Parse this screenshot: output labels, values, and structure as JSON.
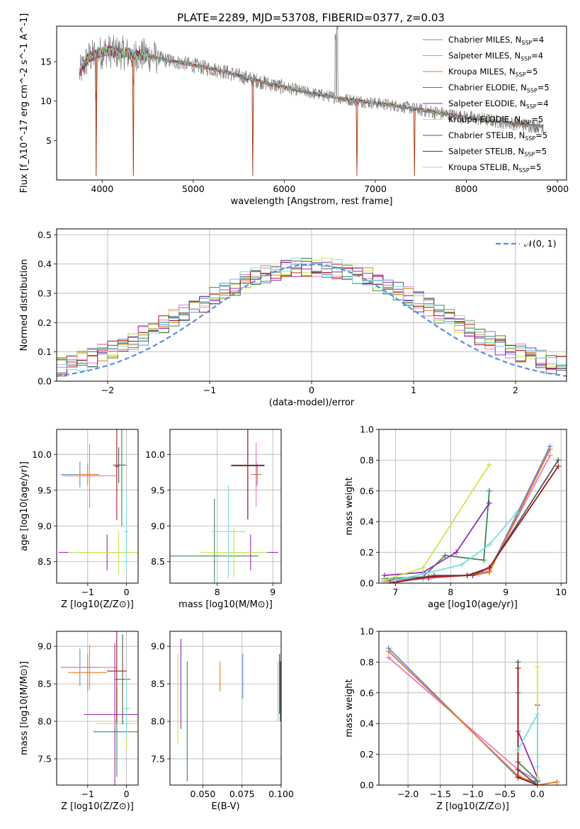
{
  "figure": {
    "title": "PLATE=2289, MJD=53708, FIBERID=0377, z=0.03"
  },
  "colors": {
    "models": [
      "#5b8ede",
      "#e879c5",
      "#e07a1e",
      "#3a8a55",
      "#9a2bbb",
      "#c9e84a",
      "#555555",
      "#a01818",
      "#7fdbe0"
    ],
    "data": "#7a7a7a",
    "gaussian": "#5b8ede"
  },
  "chart_data": [
    {
      "id": "spectrum",
      "type": "line",
      "title": "PLATE=2289, MJD=53708, FIBERID=0377, z=0.03",
      "xlabel": "wavelength [Angstrom, rest frame]",
      "ylabel": "Flux [f_λ10^-17 erg cm^-2 s^-1 A^-1]",
      "xlim": [
        3500,
        9100
      ],
      "ylim": [
        0,
        19.5
      ],
      "xticks": [
        4000,
        5000,
        6000,
        7000,
        8000,
        9000
      ],
      "yticks": [
        5,
        10,
        15
      ],
      "legend_position": "top-right",
      "legend": [
        "Chabrier MILES, N_SSP=4",
        "Salpeter MILES, N_SSP=4",
        "Kroupa MILES, N_SSP=5",
        "Chabrier ELODIE, N_SSP=5",
        "Salpeter ELODIE, N_SSP=4",
        "Kroupa ELODIE, N_SSP=5",
        "Chabrier STELIB, N_SSP=5",
        "Salpeter STELIB, N_SSP=5",
        "Kroupa STELIB, N_SSP=5"
      ],
      "continuum_x": [
        3750,
        3850,
        3950,
        4050,
        4150,
        4300,
        4500,
        4700,
        4900,
        5100,
        5300,
        5500,
        5700,
        5900,
        6100,
        6300,
        6500,
        6700,
        6900,
        7100,
        7300,
        7500,
        7700,
        7900,
        8100,
        8300,
        8500,
        8700,
        8850
      ],
      "continuum_y": [
        13.5,
        15.5,
        16.0,
        16.4,
        16.2,
        16.0,
        15.8,
        15.2,
        14.8,
        14.3,
        13.9,
        13.2,
        12.6,
        12.0,
        11.5,
        11.0,
        10.6,
        10.2,
        9.9,
        9.6,
        9.3,
        8.9,
        8.5,
        8.1,
        7.8,
        7.5,
        7.2,
        6.9,
        6.8
      ],
      "absorption_lines": [
        3934,
        4340,
        5656,
        6800,
        7430
      ],
      "emission_lines": [
        6563,
        6583
      ]
    },
    {
      "id": "residuals",
      "type": "line",
      "xlabel": "(data-model)/error",
      "ylabel": "Normed distribution",
      "xlim": [
        -2.5,
        2.5
      ],
      "ylim": [
        0,
        0.52
      ],
      "xticks": [
        -2,
        -1,
        0,
        1,
        2
      ],
      "yticks": [
        0.0,
        0.1,
        0.2,
        0.3,
        0.4,
        0.5
      ],
      "legend_position": "top-right",
      "legend": [
        "𝒩(0, 1)"
      ],
      "bin_width": 0.1,
      "bin_start": -2.5,
      "gaussian": {
        "mean": 0,
        "sigma": 1
      }
    },
    {
      "id": "age-vs-Z",
      "type": "scatter",
      "xlabel": "Z [log10(Z/Z⊙)]",
      "ylabel": "age  [log10(age/yr)]",
      "xlim": [
        -1.8,
        0.3
      ],
      "ylim": [
        8.2,
        10.35
      ],
      "xticks": [
        -1,
        0
      ],
      "yticks": [
        8.5,
        9.0,
        9.5,
        10.0
      ],
      "points": [
        {
          "x": -1.2,
          "y": 9.72,
          "xerr": 0.5,
          "yerr": 0.18
        },
        {
          "x": -0.95,
          "y": 9.7,
          "xerr": 0.7,
          "yerr": 0.45
        },
        {
          "x": -1.0,
          "y": 9.72,
          "xerr": 0.3,
          "yerr": 0.15
        },
        {
          "x": -0.12,
          "y": 9.85,
          "xerr": 0.12,
          "yerr": 0.85
        },
        {
          "x": -0.5,
          "y": 8.63,
          "xerr": 1.25,
          "yerr": 0.25
        },
        {
          "x": -0.2,
          "y": 8.63,
          "xerr": 1.3,
          "yerr": 0.3
        },
        {
          "x": -0.2,
          "y": 9.85,
          "xerr": 0.15,
          "yerr": 0.25
        },
        {
          "x": -0.25,
          "y": 9.83,
          "xerr": 0.05,
          "yerr": 0.75
        },
        {
          "x": 0.0,
          "y": 8.92,
          "xerr": 0.05,
          "yerr": 0.55
        }
      ]
    },
    {
      "id": "age-vs-mass",
      "type": "scatter",
      "xlabel": "mass [log10(M/M⊙)]",
      "ylabel": "",
      "xlim": [
        7.15,
        9.15
      ],
      "ylim": [
        8.2,
        10.35
      ],
      "xticks": [
        8,
        9
      ],
      "yticks": [
        8.5,
        9.0,
        9.5,
        10.0
      ],
      "points": [
        {
          "x": 8.7,
          "y": 9.72,
          "xerr": 0.05,
          "yerr": 0.18
        },
        {
          "x": 8.7,
          "y": 9.72,
          "xerr": 0.1,
          "yerr": 0.45
        },
        {
          "x": 8.72,
          "y": 9.72,
          "xerr": 0.08,
          "yerr": 0.15
        },
        {
          "x": 7.95,
          "y": 8.58,
          "xerr": 0.8,
          "yerr": 0.8
        },
        {
          "x": 8.6,
          "y": 8.63,
          "xerr": 0.5,
          "yerr": 0.25
        },
        {
          "x": 8.3,
          "y": 8.63,
          "xerr": 0.6,
          "yerr": 0.35
        },
        {
          "x": 8.55,
          "y": 9.85,
          "xerr": 0.3,
          "yerr": 0.75
        },
        {
          "x": 8.55,
          "y": 9.84,
          "xerr": 0.3,
          "yerr": 0.75
        },
        {
          "x": 8.2,
          "y": 8.92,
          "xerr": 0.3,
          "yerr": 0.65
        }
      ]
    },
    {
      "id": "massweight-vs-age",
      "type": "line",
      "xlabel": "age  [log10(age/yr)]",
      "ylabel": "mass weight",
      "xlim": [
        6.7,
        10.1
      ],
      "ylim": [
        0,
        1.0
      ],
      "xticks": [
        7,
        8,
        9,
        10
      ],
      "yticks": [
        0.0,
        0.2,
        0.4,
        0.6,
        0.8,
        1.0
      ],
      "series": [
        {
          "x": [
            6.8,
            7.5,
            8.3,
            8.7,
            9.8
          ],
          "y": [
            0.02,
            0.03,
            0.05,
            0.08,
            0.89
          ]
        },
        {
          "x": [
            6.8,
            7.6,
            8.5,
            8.7,
            9.8
          ],
          "y": [
            0.01,
            0.03,
            0.06,
            0.08,
            0.83
          ]
        },
        {
          "x": [
            6.9,
            7.6,
            8.4,
            8.7,
            9.8
          ],
          "y": [
            0.0,
            0.04,
            0.05,
            0.07,
            0.87
          ]
        },
        {
          "x": [
            6.8,
            7.5,
            7.9,
            8.6,
            8.7
          ],
          "y": [
            0.03,
            0.04,
            0.18,
            0.15,
            0.6
          ]
        },
        {
          "x": [
            6.8,
            7.5,
            8.1,
            8.7
          ],
          "y": [
            0.05,
            0.07,
            0.2,
            0.52
          ]
        },
        {
          "x": [
            6.8,
            7.5,
            8.7
          ],
          "y": [
            0.02,
            0.1,
            0.77
          ]
        },
        {
          "x": [
            6.9,
            7.7,
            8.4,
            8.7,
            9.95
          ],
          "y": [
            0.0,
            0.05,
            0.05,
            0.1,
            0.8
          ]
        },
        {
          "x": [
            6.9,
            7.6,
            8.3,
            8.7,
            9.95
          ],
          "y": [
            0.0,
            0.04,
            0.05,
            0.1,
            0.76
          ]
        },
        {
          "x": [
            7.0,
            7.5,
            8.2,
            8.7,
            9.2
          ],
          "y": [
            0.02,
            0.06,
            0.12,
            0.25,
            0.46
          ]
        }
      ]
    },
    {
      "id": "mass-vs-Z",
      "type": "scatter",
      "xlabel": "Z [log10(Z/Z⊙)]",
      "ylabel": "mass [log10(M/M⊙)]",
      "xlim": [
        -1.8,
        0.3
      ],
      "ylim": [
        7.15,
        9.2
      ],
      "xticks": [
        -1,
        0
      ],
      "yticks": [
        7.5,
        8.0,
        8.5,
        9.0
      ],
      "points": [
        {
          "x": -1.2,
          "y": 8.72,
          "xerr": 0.5,
          "yerr": 0.25
        },
        {
          "x": -0.95,
          "y": 8.72,
          "xerr": 0.7,
          "yerr": 0.3
        },
        {
          "x": -1.0,
          "y": 8.65,
          "xerr": 0.5,
          "yerr": 0.25
        },
        {
          "x": -0.25,
          "y": 7.86,
          "xerr": 0.6,
          "yerr": 0.6
        },
        {
          "x": -0.3,
          "y": 8.09,
          "xerr": 0.8,
          "yerr": 0.95
        },
        {
          "x": 0.0,
          "y": 7.97,
          "xerr": 0.8,
          "yerr": 0.35
        },
        {
          "x": -0.1,
          "y": 8.56,
          "xerr": 0.2,
          "yerr": 0.6
        },
        {
          "x": -0.25,
          "y": 8.67,
          "xerr": 0.25,
          "yerr": 0.7
        },
        {
          "x": 0.0,
          "y": 8.17,
          "xerr": 0.1,
          "yerr": 0.4
        }
      ]
    },
    {
      "id": "mass-vs-EBV",
      "type": "scatter",
      "xlabel": "E(B-V)",
      "ylabel": "",
      "xlim": [
        0.029,
        0.1
      ],
      "ylim": [
        7.15,
        9.2
      ],
      "xticks": [
        0.05,
        0.075,
        0.1
      ],
      "xticklabels": [
        "0.050",
        "0.075",
        "0.100"
      ],
      "yticks": [
        7.5,
        8.0,
        8.5,
        9.0
      ],
      "points": [
        {
          "x": 0.0755,
          "y": 8.6,
          "yerr": 0.3
        },
        {
          "x": 0.098,
          "y": 8.4,
          "yerr": 0.4
        },
        {
          "x": 0.061,
          "y": 8.6,
          "yerr": 0.2
        },
        {
          "x": 0.04,
          "y": 8.0,
          "yerr": 0.8
        },
        {
          "x": 0.036,
          "y": 8.5,
          "yerr": 0.6
        },
        {
          "x": 0.034,
          "y": 8.3,
          "yerr": 0.6
        },
        {
          "x": 0.0995,
          "y": 8.4,
          "yerr": 0.4
        },
        {
          "x": 0.099,
          "y": 8.5,
          "yerr": 0.4
        },
        {
          "x": 0.098,
          "y": 8.4,
          "yerr": 0.4
        }
      ]
    },
    {
      "id": "massweight-vs-Z",
      "type": "line",
      "xlabel": "Z [log10(Z/Z⊙)]",
      "ylabel": "mass weight",
      "xlim": [
        -2.45,
        0.45
      ],
      "ylim": [
        0,
        1.0
      ],
      "xticks": [
        -2.0,
        -1.5,
        -1.0,
        -0.5,
        0.0
      ],
      "yticks": [
        0.0,
        0.2,
        0.4,
        0.6,
        0.8,
        1.0
      ],
      "series": [
        {
          "x": [
            -2.3,
            -0.3,
            0.0
          ],
          "y": [
            0.89,
            0.05,
            0.02
          ]
        },
        {
          "x": [
            -2.3,
            -0.3,
            0.0
          ],
          "y": [
            0.83,
            0.1,
            0.03
          ]
        },
        {
          "x": [
            -2.3,
            -0.3,
            0.0,
            0.3
          ],
          "y": [
            0.87,
            0.06,
            0.0,
            0.02
          ]
        },
        {
          "x": [
            -0.3,
            -0.3,
            0.0
          ],
          "y": [
            0.6,
            0.15,
            0.03
          ]
        },
        {
          "x": [
            -0.3,
            0.0,
            0.0
          ],
          "y": [
            0.35,
            0.05,
            0.52
          ]
        },
        {
          "x": [
            0.0,
            0.0
          ],
          "y": [
            0.77,
            0.05
          ]
        },
        {
          "x": [
            -0.3,
            -0.3,
            0.0
          ],
          "y": [
            0.8,
            0.1,
            0.0
          ]
        },
        {
          "x": [
            -0.3,
            -0.3,
            0.0
          ],
          "y": [
            0.76,
            0.05,
            0.0
          ]
        },
        {
          "x": [
            -0.3,
            0.0,
            0.0
          ],
          "y": [
            0.23,
            0.46,
            0.12
          ]
        }
      ]
    }
  ]
}
